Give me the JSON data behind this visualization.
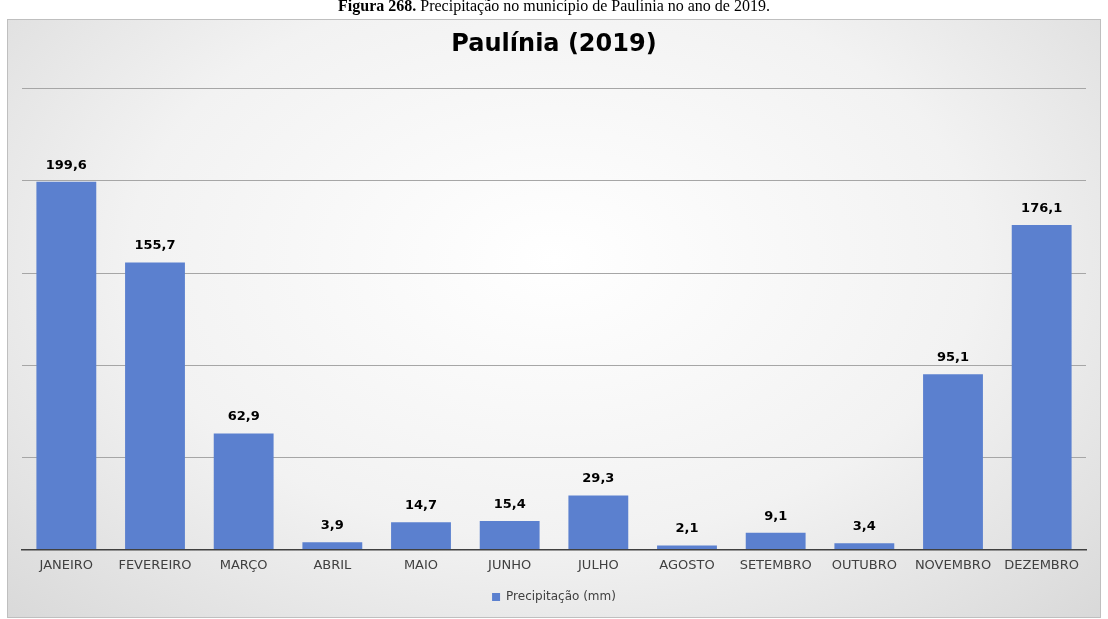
{
  "chart_data": {
    "type": "bar",
    "title": "Paulínia (2019)",
    "categories": [
      "JANEIRO",
      "FEVEREIRO",
      "MARÇO",
      "ABRIL",
      "MAIO",
      "JUNHO",
      "JULHO",
      "AGOSTO",
      "SETEMBRO",
      "OUTUBRO",
      "NOVEMBRO",
      "DEZEMBRO"
    ],
    "series": [
      {
        "name": "Precipitação (mm)",
        "color": "#5b80cf",
        "values": [
          199.6,
          155.7,
          62.9,
          3.9,
          14.7,
          15.4,
          29.3,
          2.1,
          9.1,
          3.4,
          95.1,
          176.1
        ],
        "value_labels": [
          "199,6",
          "155,7",
          "62,9",
          "3,9",
          "14,7",
          "15,4",
          "29,3",
          "2,1",
          "9,1",
          "3,4",
          "95,1",
          "176,1"
        ]
      }
    ],
    "ylim": [
      0,
      250
    ],
    "yticks": [
      {
        "value": 0,
        "label": null
      },
      {
        "value": 50,
        "label": null
      },
      {
        "value": 100,
        "label": null
      },
      {
        "value": 150,
        "label": null
      },
      {
        "value": 200,
        "label": null
      },
      {
        "value": 250,
        "label": null
      }
    ],
    "grid": "y",
    "legend": "bottom",
    "tick_labels": "x",
    "annotations": [
      "Figura 268. Precipitação no município de Paulínia no ano de 2019."
    ]
  }
}
